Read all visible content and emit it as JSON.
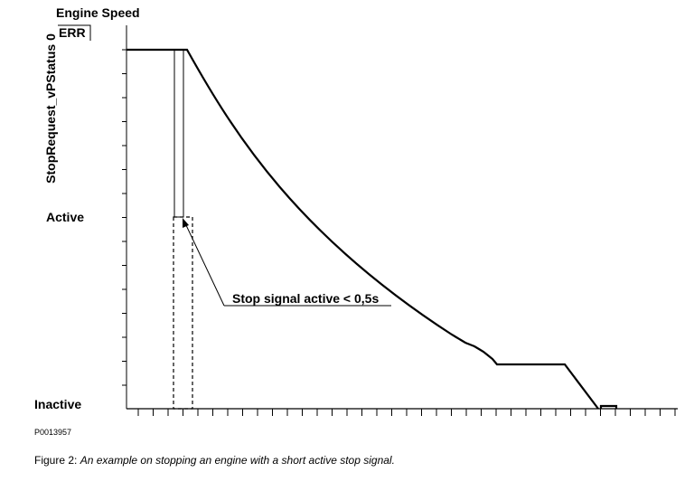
{
  "title": "Engine Speed",
  "y_axis_label": "StopRequest_vPStatus 0",
  "levels": {
    "err": "ERR",
    "active": "Active",
    "inactive": "Inactive"
  },
  "annotation": "Stop signal active < 0,5s",
  "figure_id": "P0013957",
  "caption": {
    "number": "Figure 2:",
    "text": "An example on stopping an engine with a short active stop signal."
  }
}
